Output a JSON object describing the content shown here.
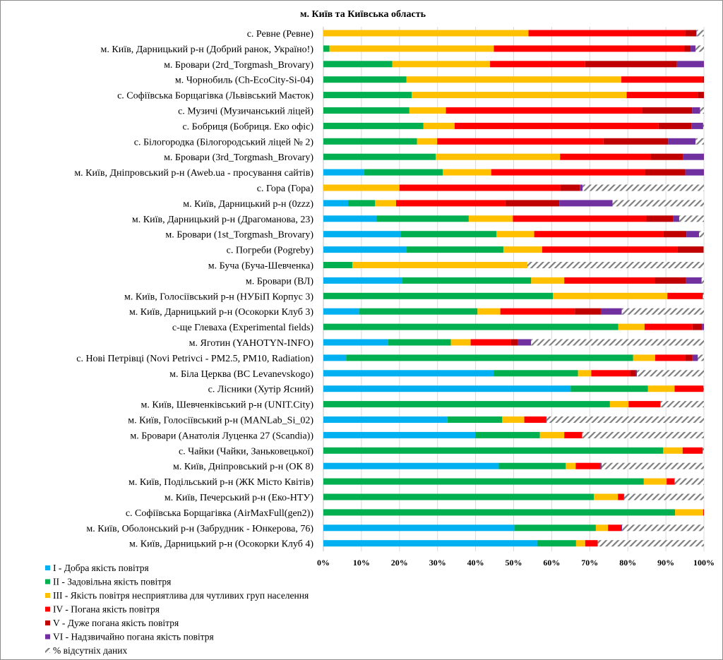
{
  "chart_data": {
    "type": "bar",
    "orientation": "horizontal",
    "stacked": "percent",
    "title": "м. Київ та Київська область",
    "xlabel": "",
    "ylabel": "",
    "xlim": [
      0,
      100
    ],
    "x_ticks": [
      "0%",
      "10%",
      "20%",
      "30%",
      "40%",
      "50%",
      "60%",
      "70%",
      "80%",
      "90%",
      "100%"
    ],
    "grid": true,
    "legend_position": "bottom-left",
    "categories": [
      "с. Ревне (Ревне)",
      "м. Київ, Дарницький р-н (Добрий ранок, Україно!)",
      "м. Бровари (2rd_Torgmash_Brovary)",
      "м. Чорнобиль (Ch-EcoCity-Si-04)",
      "с. Софіївська Борщагівка (Львівський Маєток)",
      "с. Музичі (Музичанський ліцей)",
      "с. Бобриця (Бобриця. Еко офіс)",
      "с. Білогородка (Білогородський ліцей № 2)",
      "м. Бровари (3rd_Torgmash_Brovary)",
      "м. Київ, Дніпровський р-н (Aweb.ua - просування сайтів)",
      "с. Гора (Гора)",
      "м. Київ, Дарницький р-н (0zzz)",
      "м. Київ, Дарницький р-н (Драгоманова, 23)",
      "м. Бровари (1st_Torgmash_Brovary)",
      "с. Погреби (Pogreby)",
      "м. Буча (Буча-Шевченка)",
      "м. Бровари (ВЛ)",
      "м. Київ, Голосіївський р-н (НУБіП Корпус 3)",
      "м. Київ, Дарницький р-н (Осокорки Клуб 3)",
      "с-ще Глеваха (Experimental fields)",
      "м. Яготин (YAHOTYN-INFO)",
      "с. Нові Петрівці (Novi Petrivci - PM2.5, PM10, Radiation)",
      "м. Біла Церква (BC Levanevskogo)",
      "с. Лісники (Хутір Ясний)",
      "м. Київ, Шевченківський р-н (UNIT.City)",
      "м. Київ, Голосіївський р-н (MANLab_Si_02)",
      "м. Бровари (Анатолія Луценка 27 (Scandia))",
      "с. Чайки (Чайки, Заньковецької)",
      "м. Київ, Дніпровський р-н (ОК 8)",
      "м. Київ, Подільський р-н (ЖК Місто Квітів)",
      "м. Київ, Печерський р-н (Еко-НТУ)",
      "с. Софіївська Борщагівка (AirMaxFull(gen2))",
      "м. Київ, Оболонський р-н (Забрудник - Юнкерова, 76)",
      "м. Київ, Дарницький р-н (Осокорки Клуб 4)"
    ],
    "series": [
      {
        "name": "I - Добра якість повітря",
        "color": "#00b0f0",
        "values": [
          0,
          0,
          0,
          0,
          0,
          0,
          0,
          0,
          0,
          10.7,
          0,
          6.5,
          14.0,
          20.3,
          21.9,
          0,
          20.7,
          0,
          9.4,
          0,
          17.0,
          6.0,
          44.8,
          65.0,
          0,
          32.6,
          39.9,
          0,
          46.1,
          0,
          0,
          0,
          50.2,
          56.2
        ]
      },
      {
        "name": "II - Задовільна якість повітря",
        "color": "#00b050",
        "values": [
          0,
          1.6,
          18.1,
          21.8,
          23.2,
          22.6,
          26.3,
          24.6,
          29.5,
          20.7,
          0,
          7.1,
          24.2,
          25.2,
          25.4,
          7.6,
          33.9,
          60.3,
          31.1,
          77.5,
          16.5,
          75.4,
          22.1,
          20.3,
          75.3,
          14.4,
          17.0,
          89.3,
          17.6,
          84.2,
          71.1,
          92.4,
          21.4,
          10.2
        ]
      },
      {
        "name": "III - Якість повітря несприятлива  для чутливих  груп населення",
        "color": "#ffc000",
        "values": [
          53.9,
          43.2,
          25.7,
          56.5,
          56.5,
          9.6,
          8.2,
          5.3,
          32.7,
          12.7,
          20.0,
          5.5,
          11.6,
          9.9,
          10.2,
          46.0,
          8.7,
          30.1,
          6.0,
          6.9,
          5.2,
          5.8,
          3.5,
          7.0,
          4.9,
          5.8,
          6.4,
          5.1,
          2.6,
          6.0,
          6.3,
          7.4,
          3.2,
          2.4
        ]
      },
      {
        "name": "IV - Погана якість повітря",
        "color": "#ff0000",
        "values": [
          41.2,
          50.1,
          25.0,
          21.3,
          18.7,
          51.5,
          53.6,
          43.7,
          23.8,
          40.5,
          42.2,
          28.7,
          35.0,
          33.9,
          35.5,
          0,
          23.8,
          8.9,
          19.6,
          12.6,
          10.5,
          7.9,
          10.2,
          7.6,
          8.4,
          5.7,
          4.7,
          5.1,
          6.5,
          2.0,
          1.6,
          0.2,
          3.5,
          3.3
        ]
      },
      {
        "name": "V - Дуже погана  якість повітря",
        "color": "#c00000",
        "values": [
          2.9,
          1.6,
          24.1,
          0.4,
          1.6,
          13.2,
          8.6,
          17.0,
          8.5,
          10.5,
          5.2,
          14.2,
          7.1,
          6.1,
          6.9,
          0,
          8.2,
          0.4,
          6.8,
          2.5,
          1.9,
          1.9,
          1.5,
          0,
          0,
          0,
          0,
          0.2,
          0,
          0,
          0,
          0,
          0,
          0
        ]
      },
      {
        "name": "VI - Надзвичайно  погана  якість повітря",
        "color": "#7030a0",
        "values": [
          0.1,
          1.3,
          7.1,
          0,
          0,
          2.1,
          3.1,
          7.2,
          5.5,
          4.9,
          0.7,
          14.0,
          1.6,
          3.3,
          0,
          0,
          4.1,
          0,
          5.5,
          0.5,
          3.5,
          1.4,
          0.3,
          0,
          0,
          0.2,
          0,
          0,
          0.3,
          0.1,
          0.1,
          0,
          0.2,
          0
        ]
      },
      {
        "name": "% відсутніх даних",
        "color": "#7f7f7f",
        "pattern": "hatch",
        "values": [
          1.9,
          2.2,
          0,
          0,
          0,
          1.0,
          0.2,
          2.2,
          0,
          0,
          31.9,
          24.0,
          6.5,
          1.3,
          0,
          46.4,
          0.6,
          0.3,
          21.6,
          0,
          45.4,
          1.6,
          17.6,
          0.1,
          11.4,
          41.3,
          32.0,
          0.3,
          26.9,
          7.7,
          20.9,
          0,
          21.5,
          27.9
        ]
      }
    ]
  }
}
